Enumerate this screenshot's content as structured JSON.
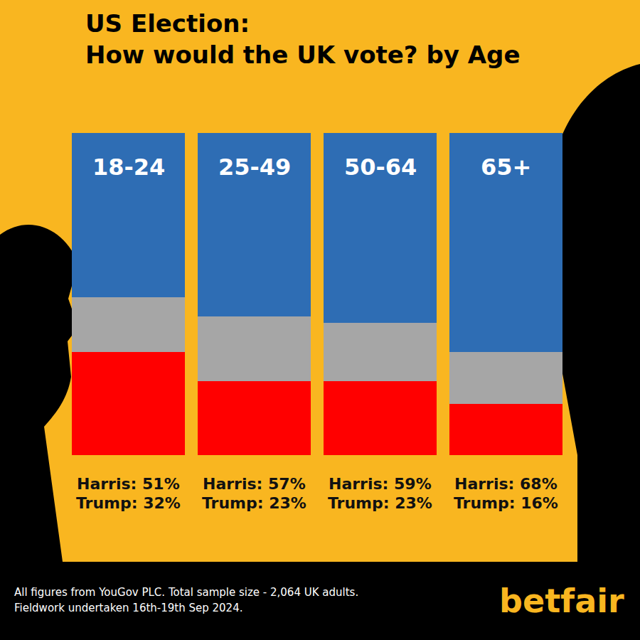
{
  "chart_data": {
    "type": "bar",
    "title": "US Election:",
    "subtitle": "How would the UK vote? by Age",
    "categories": [
      "18-24",
      "25-49",
      "50-64",
      "65+"
    ],
    "stacked": true,
    "tick_labels": false,
    "data_labels": true,
    "ylim": [
      0,
      100
    ],
    "series": [
      {
        "name": "Trump",
        "color": "#FF0000",
        "values": [
          32,
          23,
          23,
          16
        ],
        "value_labels": [
          "Trump: 32%",
          "Trump: 23%",
          "Trump: 23%",
          "Trump: 16%"
        ]
      },
      {
        "name": null,
        "color": "#A6A6A6",
        "values": [
          17,
          20,
          18,
          16
        ]
      },
      {
        "name": "Harris",
        "color": "#2E6DB4",
        "values": [
          51,
          57,
          59,
          68
        ],
        "value_labels": [
          "Harris: 51%",
          "Harris: 57%",
          "Harris: 59%",
          "Harris: 68%"
        ]
      }
    ],
    "annotations": [
      "All figures from YouGov PLC. Total sample size - 2,064 UK adults.",
      "Fieldwork undertaken 16th-19th Sep 2024.",
      "betfair"
    ]
  }
}
